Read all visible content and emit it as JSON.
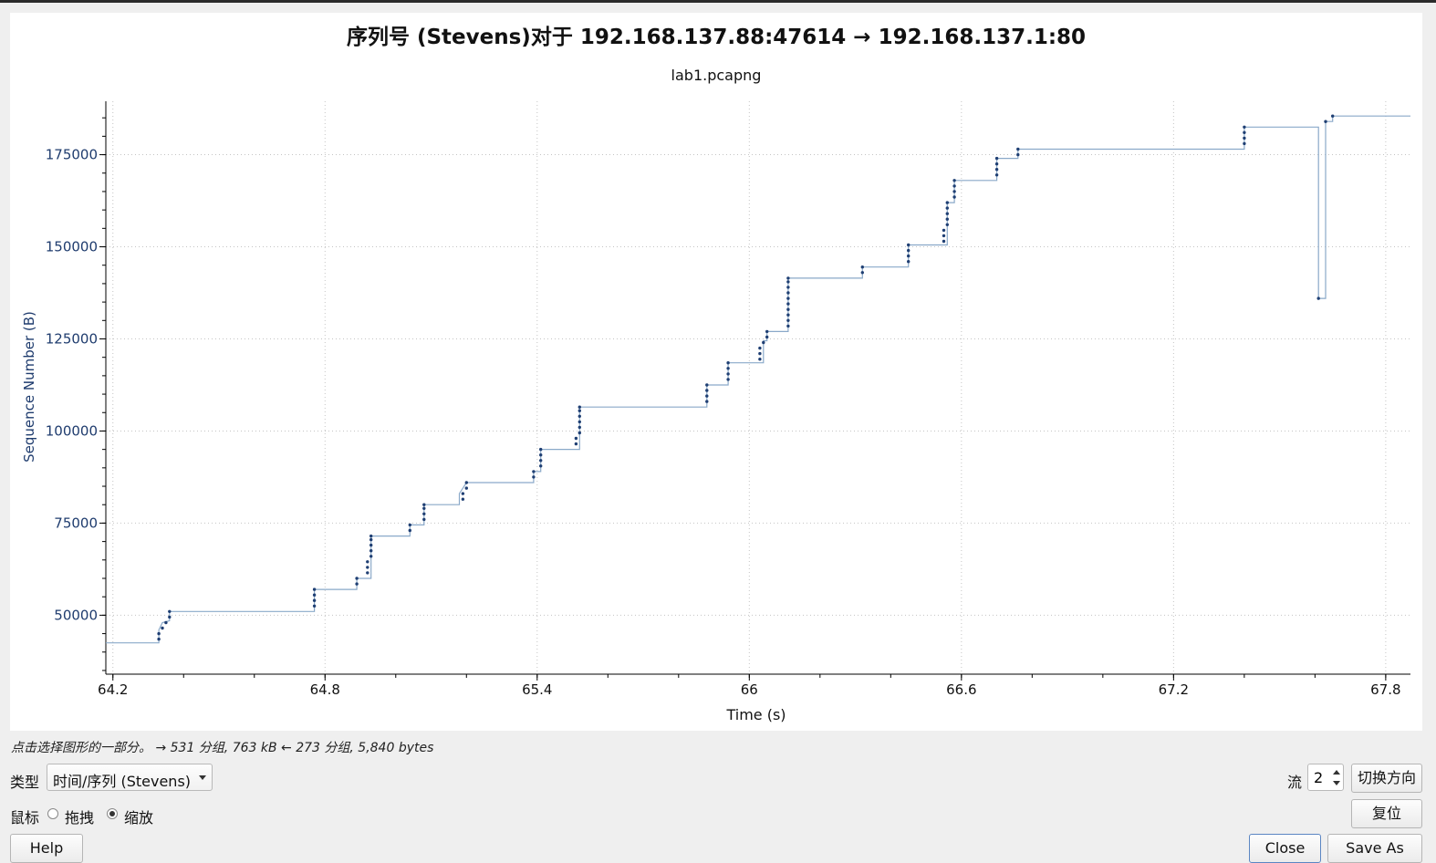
{
  "dialog": {
    "status_text": "点击选择图形的一部分。 → 531 分组, 763 kB ← 273 分组, 5,840 bytes",
    "type_label": "类型",
    "type_value": "时间/序列 (Stevens)",
    "mouse_label": "鼠标",
    "drag_label": "拖拽",
    "zoom_label": "缩放",
    "stream_label": "流",
    "stream_value": "2",
    "switch_direction_label": "切换方向",
    "reset_label": "复位",
    "help_label": "Help",
    "close_label": "Close",
    "save_as_label": "Save As"
  },
  "chart_data": {
    "type": "line",
    "title": "序列号 (Stevens)对于 192.168.137.88:47614 → 192.168.137.1:80",
    "subtitle": "lab1.pcapng",
    "xlabel": "Time (s)",
    "ylabel": "Sequence Number (B)",
    "x_ticks": [
      "64.2",
      "64.8",
      "65.4",
      "66",
      "66.6",
      "67.2",
      "67.8"
    ],
    "x_tick_values": [
      64.2,
      64.8,
      65.4,
      66.0,
      66.6,
      67.2,
      67.8
    ],
    "y_ticks": [
      "50000",
      "75000",
      "100000",
      "125000",
      "150000",
      "175000"
    ],
    "y_tick_values": [
      50000,
      75000,
      100000,
      125000,
      150000,
      175000
    ],
    "xlim": [
      64.18,
      67.87
    ],
    "ylim": [
      34000,
      189500
    ],
    "grid": true,
    "line_color": "#8aa9c9",
    "marker_color": "#1f3f73",
    "axis_text_color": "#1f3c6e",
    "series": [
      {
        "step_line": [
          [
            64.18,
            42500
          ],
          [
            64.33,
            42500
          ],
          [
            64.33,
            46000
          ],
          [
            64.34,
            48000
          ],
          [
            64.36,
            48500
          ],
          [
            64.36,
            51000
          ],
          [
            64.77,
            51000
          ],
          [
            64.77,
            57000
          ],
          [
            64.89,
            57000
          ],
          [
            64.89,
            60000
          ],
          [
            64.93,
            60000
          ],
          [
            64.93,
            71500
          ],
          [
            65.04,
            71500
          ],
          [
            65.04,
            74500
          ],
          [
            65.08,
            74500
          ],
          [
            65.08,
            80000
          ],
          [
            65.18,
            80000
          ],
          [
            65.18,
            83000
          ],
          [
            65.2,
            86000
          ],
          [
            65.39,
            86000
          ],
          [
            65.39,
            89000
          ],
          [
            65.41,
            89000
          ],
          [
            65.41,
            95000
          ],
          [
            65.52,
            95000
          ],
          [
            65.52,
            106500
          ],
          [
            65.88,
            106500
          ],
          [
            65.88,
            112500
          ],
          [
            65.94,
            112500
          ],
          [
            65.94,
            118500
          ],
          [
            66.04,
            118500
          ],
          [
            66.04,
            124500
          ],
          [
            66.05,
            124500
          ],
          [
            66.05,
            127000
          ],
          [
            66.11,
            127000
          ],
          [
            66.11,
            141500
          ],
          [
            66.32,
            141500
          ],
          [
            66.32,
            144500
          ],
          [
            66.45,
            144500
          ],
          [
            66.45,
            150500
          ],
          [
            66.56,
            150500
          ],
          [
            66.56,
            162000
          ],
          [
            66.58,
            162000
          ],
          [
            66.58,
            168000
          ],
          [
            66.7,
            168000
          ],
          [
            66.7,
            174000
          ],
          [
            66.76,
            174000
          ],
          [
            66.76,
            176500
          ],
          [
            67.4,
            176500
          ],
          [
            67.4,
            182500
          ],
          [
            67.61,
            182500
          ],
          [
            67.61,
            136000
          ],
          [
            67.63,
            136000
          ],
          [
            67.63,
            184000
          ],
          [
            67.65,
            184000
          ],
          [
            67.65,
            185500
          ],
          [
            67.87,
            185500
          ]
        ],
        "points": [
          [
            64.33,
            43500
          ],
          [
            64.33,
            45000
          ],
          [
            64.34,
            46500
          ],
          [
            64.35,
            48000
          ],
          [
            64.36,
            49500
          ],
          [
            64.36,
            51000
          ],
          [
            64.77,
            52500
          ],
          [
            64.77,
            54000
          ],
          [
            64.77,
            55500
          ],
          [
            64.77,
            57000
          ],
          [
            64.89,
            58500
          ],
          [
            64.89,
            60000
          ],
          [
            64.92,
            61500
          ],
          [
            64.92,
            63000
          ],
          [
            64.92,
            64500
          ],
          [
            64.93,
            66000
          ],
          [
            64.93,
            67500
          ],
          [
            64.93,
            69000
          ],
          [
            64.93,
            70500
          ],
          [
            64.93,
            71500
          ],
          [
            65.04,
            73000
          ],
          [
            65.04,
            74500
          ],
          [
            65.08,
            76000
          ],
          [
            65.08,
            77500
          ],
          [
            65.08,
            79000
          ],
          [
            65.08,
            80000
          ],
          [
            65.19,
            81500
          ],
          [
            65.19,
            83000
          ],
          [
            65.2,
            84500
          ],
          [
            65.2,
            86000
          ],
          [
            65.39,
            87500
          ],
          [
            65.39,
            89000
          ],
          [
            65.41,
            90500
          ],
          [
            65.41,
            92000
          ],
          [
            65.41,
            93500
          ],
          [
            65.41,
            95000
          ],
          [
            65.51,
            96500
          ],
          [
            65.51,
            98000
          ],
          [
            65.52,
            99500
          ],
          [
            65.52,
            101000
          ],
          [
            65.52,
            102500
          ],
          [
            65.52,
            104000
          ],
          [
            65.52,
            105500
          ],
          [
            65.52,
            106500
          ],
          [
            65.88,
            108000
          ],
          [
            65.88,
            109500
          ],
          [
            65.88,
            111000
          ],
          [
            65.88,
            112500
          ],
          [
            65.94,
            114000
          ],
          [
            65.94,
            115500
          ],
          [
            65.94,
            117000
          ],
          [
            65.94,
            118500
          ],
          [
            66.03,
            119500
          ],
          [
            66.03,
            121000
          ],
          [
            66.03,
            122500
          ],
          [
            66.04,
            124000
          ],
          [
            66.05,
            125500
          ],
          [
            66.05,
            127000
          ],
          [
            66.11,
            128500
          ],
          [
            66.11,
            130000
          ],
          [
            66.11,
            131500
          ],
          [
            66.11,
            133000
          ],
          [
            66.11,
            134500
          ],
          [
            66.11,
            136000
          ],
          [
            66.11,
            137500
          ],
          [
            66.11,
            139000
          ],
          [
            66.11,
            140500
          ],
          [
            66.11,
            141500
          ],
          [
            66.32,
            143000
          ],
          [
            66.32,
            144500
          ],
          [
            66.45,
            146000
          ],
          [
            66.45,
            147500
          ],
          [
            66.45,
            149000
          ],
          [
            66.45,
            150500
          ],
          [
            66.55,
            151500
          ],
          [
            66.55,
            153000
          ],
          [
            66.55,
            154500
          ],
          [
            66.56,
            156000
          ],
          [
            66.56,
            157500
          ],
          [
            66.56,
            159000
          ],
          [
            66.56,
            160500
          ],
          [
            66.56,
            162000
          ],
          [
            66.58,
            163500
          ],
          [
            66.58,
            165000
          ],
          [
            66.58,
            166500
          ],
          [
            66.58,
            168000
          ],
          [
            66.7,
            169500
          ],
          [
            66.7,
            171000
          ],
          [
            66.7,
            172500
          ],
          [
            66.7,
            174000
          ],
          [
            66.76,
            175000
          ],
          [
            66.76,
            176500
          ],
          [
            67.4,
            178000
          ],
          [
            67.4,
            179500
          ],
          [
            67.4,
            181000
          ],
          [
            67.4,
            182500
          ],
          [
            67.61,
            136000
          ],
          [
            67.63,
            184000
          ],
          [
            67.65,
            185500
          ]
        ]
      }
    ]
  }
}
